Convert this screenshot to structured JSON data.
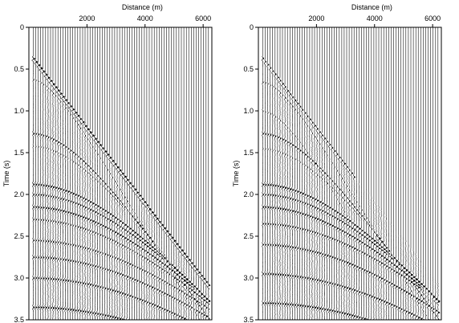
{
  "chart_data": [
    {
      "type": "seismic-wiggle",
      "xlabel": "Distance (m)",
      "ylabel": "Time (s)",
      "xlim": [
        0,
        6300
      ],
      "ylim": [
        0,
        3.5
      ],
      "x_ticks": [
        "2000",
        "4000",
        "6000"
      ],
      "x_tick_values": [
        2000,
        4000,
        6000
      ],
      "y_ticks": [
        "0",
        "0.5",
        "1.0",
        "1.5",
        "2.0",
        "2.5",
        "3.0",
        "3.5"
      ],
      "y_tick_values": [
        0,
        0.5,
        1.0,
        1.5,
        2.0,
        2.5,
        3.0,
        3.5
      ],
      "trace_count": 72,
      "trace_start_m": 150,
      "trace_spacing_m": 85,
      "first_arrival_time_s": 0.27,
      "first_arrival_slope_s_per_m": 0.00045,
      "reflection_events": [
        {
          "t0_s": 0.62,
          "moveout_v_ms": 1700,
          "amplitude": 0.5
        },
        {
          "t0_s": 1.27,
          "moveout_v_ms": 1900,
          "amplitude": 0.8
        },
        {
          "t0_s": 1.42,
          "moveout_v_ms": 2000,
          "amplitude": 0.45
        },
        {
          "t0_s": 1.88,
          "moveout_v_ms": 2300,
          "amplitude": 1.0
        },
        {
          "t0_s": 2.0,
          "moveout_v_ms": 2400,
          "amplitude": 0.85
        },
        {
          "t0_s": 2.15,
          "moveout_v_ms": 2500,
          "amplitude": 0.95
        },
        {
          "t0_s": 2.3,
          "moveout_v_ms": 2600,
          "amplitude": 0.7
        },
        {
          "t0_s": 2.55,
          "moveout_v_ms": 2800,
          "amplitude": 0.75
        },
        {
          "t0_s": 2.75,
          "moveout_v_ms": 2900,
          "amplitude": 0.8
        },
        {
          "t0_s": 3.0,
          "moveout_v_ms": 3000,
          "amplitude": 0.9
        },
        {
          "t0_s": 3.35,
          "moveout_v_ms": 3200,
          "amplitude": 1.0
        }
      ],
      "direct_wave": {
        "amplitude": 1.4,
        "visible_max_m": 6300
      }
    },
    {
      "type": "seismic-wiggle",
      "xlabel": "Distance (m)",
      "ylabel": "Time (s)",
      "xlim": [
        0,
        6300
      ],
      "ylim": [
        0,
        3.5
      ],
      "x_ticks": [
        "2000",
        "4000",
        "6000"
      ],
      "x_tick_values": [
        2000,
        4000,
        6000
      ],
      "y_ticks": [
        "0",
        "0.5",
        "1.0",
        "1.5",
        "2.0",
        "2.5",
        "3.0",
        "3.5"
      ],
      "y_tick_values": [
        0,
        0.5,
        1.0,
        1.5,
        2.0,
        2.5,
        3.0,
        3.5
      ],
      "trace_count": 72,
      "trace_start_m": 150,
      "trace_spacing_m": 85,
      "first_arrival_time_s": 0.27,
      "first_arrival_slope_s_per_m": 0.00045,
      "reflection_events": [
        {
          "t0_s": 0.65,
          "moveout_v_ms": 1700,
          "amplitude": 0.5
        },
        {
          "t0_s": 1.0,
          "moveout_v_ms": 1500,
          "amplitude": 0.45,
          "max_m": 3300
        },
        {
          "t0_s": 1.27,
          "moveout_v_ms": 1900,
          "amplitude": 0.8
        },
        {
          "t0_s": 1.45,
          "moveout_v_ms": 2000,
          "amplitude": 0.4
        },
        {
          "t0_s": 1.88,
          "moveout_v_ms": 2300,
          "amplitude": 1.0
        },
        {
          "t0_s": 2.0,
          "moveout_v_ms": 2400,
          "amplitude": 0.85
        },
        {
          "t0_s": 2.15,
          "moveout_v_ms": 2500,
          "amplitude": 0.95
        },
        {
          "t0_s": 2.35,
          "moveout_v_ms": 2700,
          "amplitude": 0.8
        },
        {
          "t0_s": 2.6,
          "moveout_v_ms": 2800,
          "amplitude": 0.9
        },
        {
          "t0_s": 2.95,
          "moveout_v_ms": 3000,
          "amplitude": 0.95
        },
        {
          "t0_s": 3.3,
          "moveout_v_ms": 3200,
          "amplitude": 1.0
        }
      ],
      "direct_wave": {
        "amplitude": 0.9,
        "visible_max_m": 3300
      }
    }
  ]
}
